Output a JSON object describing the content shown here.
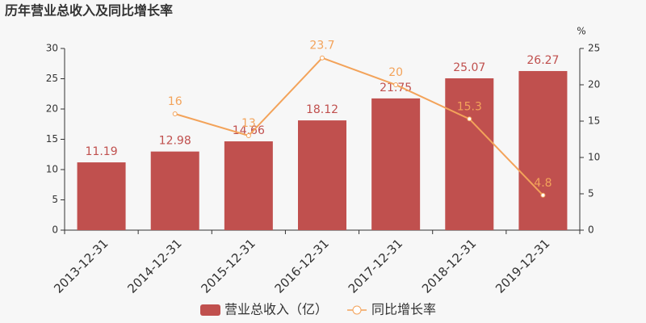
{
  "chart_data": {
    "type": "bar",
    "title": "历年营业总收入及同比增长率",
    "categories": [
      "2013-12-31",
      "2014-12-31",
      "2015-12-31",
      "2016-12-31",
      "2017-12-31",
      "2018-12-31",
      "2019-12-31"
    ],
    "series": [
      {
        "name": "营业总收入（亿）",
        "type": "bar",
        "color": "#c0504e",
        "values": [
          11.19,
          12.98,
          14.66,
          18.12,
          21.75,
          25.07,
          26.27
        ]
      },
      {
        "name": "同比增长率",
        "type": "line",
        "axis": "y2",
        "color": "#f3a35a",
        "values": [
          null,
          16,
          13,
          23.7,
          20,
          15.3,
          4.8
        ]
      }
    ],
    "ylim": [
      0,
      30
    ],
    "yticks": [
      0,
      5,
      10,
      15,
      20,
      25,
      30
    ],
    "y2label": "%",
    "y2lim": [
      0,
      25
    ],
    "y2ticks": [
      0,
      5,
      10,
      15,
      20,
      25
    ],
    "legend": "bottom"
  }
}
